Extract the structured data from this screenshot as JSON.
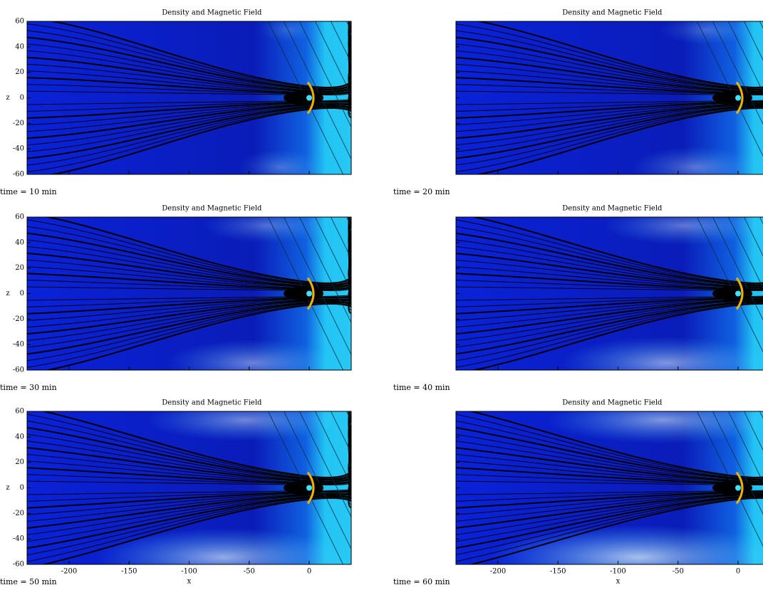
{
  "figure": {
    "panels": [
      {
        "title": "Density and Magnetic Field",
        "time_label": "time = 10 min"
      },
      {
        "title": "Density and Magnetic Field",
        "time_label": "time = 20 min"
      },
      {
        "title": "Density and Magnetic Field",
        "time_label": "time = 30 min"
      },
      {
        "title": "Density and Magnetic Field",
        "time_label": "time = 40 min"
      },
      {
        "title": "Density and Magnetic Field",
        "time_label": "time = 50 min"
      },
      {
        "title": "Density and Magnetic Field",
        "time_label": "time = 60 min"
      }
    ],
    "y_axis_label": "z",
    "x_axis_label": "x",
    "ylim": [
      -60,
      60
    ],
    "yticks": [
      60,
      40,
      20,
      0,
      -20,
      -40,
      -60
    ],
    "xlim": [
      -235,
      35
    ],
    "xticks": [
      -200,
      -150,
      -100,
      -50,
      0
    ]
  }
}
